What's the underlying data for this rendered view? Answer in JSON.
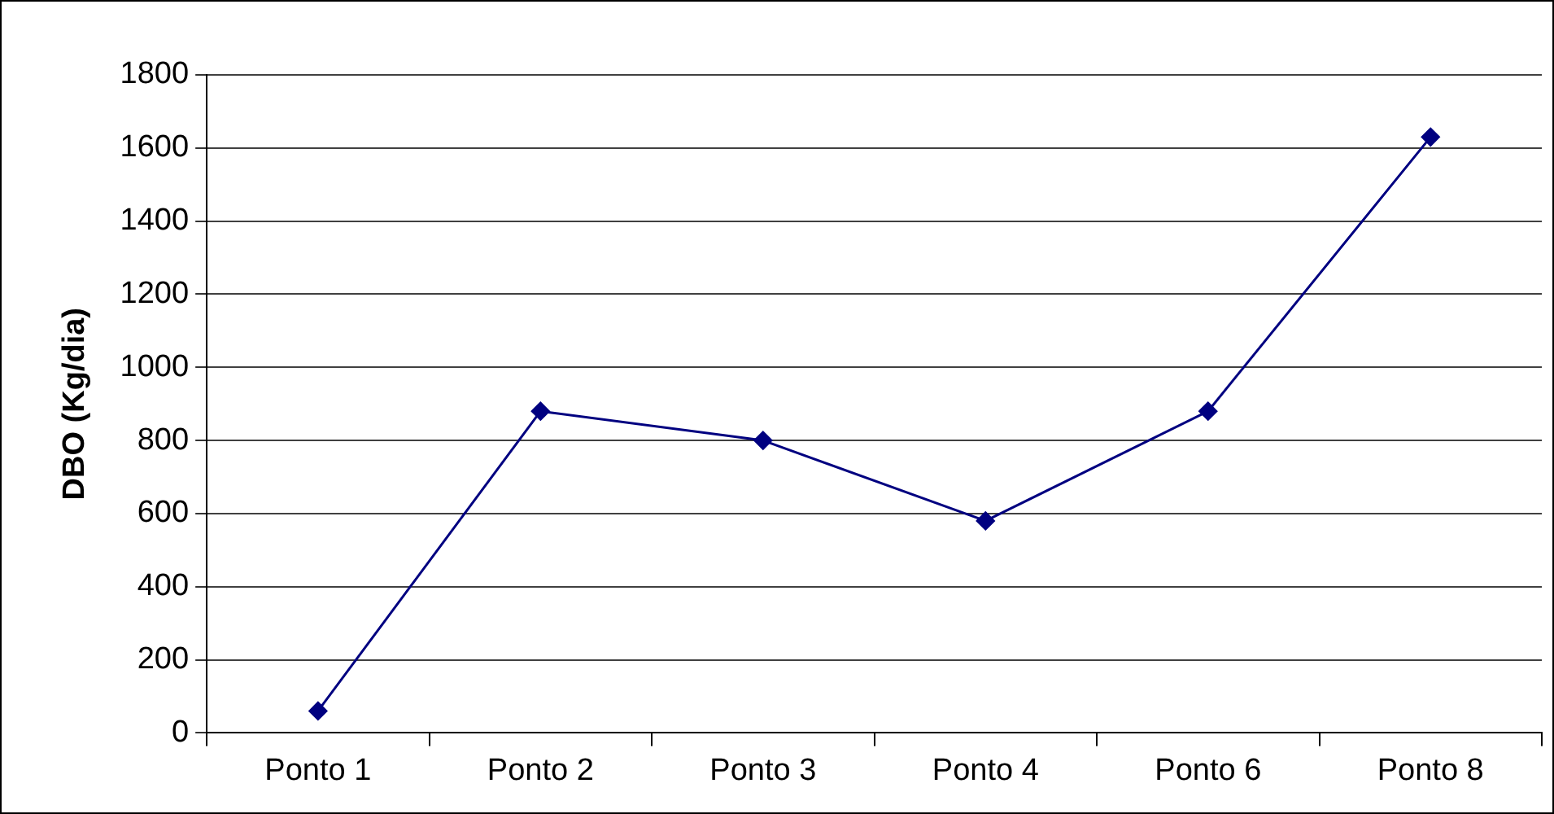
{
  "chart_data": {
    "type": "line",
    "ylabel": "DBO (Kg/dia)",
    "categories": [
      "Ponto 1",
      "Ponto 2",
      "Ponto 3",
      "Ponto 4",
      "Ponto 6",
      "Ponto 8"
    ],
    "series": [
      {
        "color": "#000080",
        "values": [
          60,
          880,
          800,
          580,
          880,
          1630
        ]
      }
    ],
    "ylim": [
      0,
      1800
    ],
    "yticks": [
      0,
      200,
      400,
      600,
      800,
      1000,
      1200,
      1400,
      1600,
      1800
    ],
    "grid": "y",
    "marker": "diamond",
    "line_style": "solid"
  }
}
